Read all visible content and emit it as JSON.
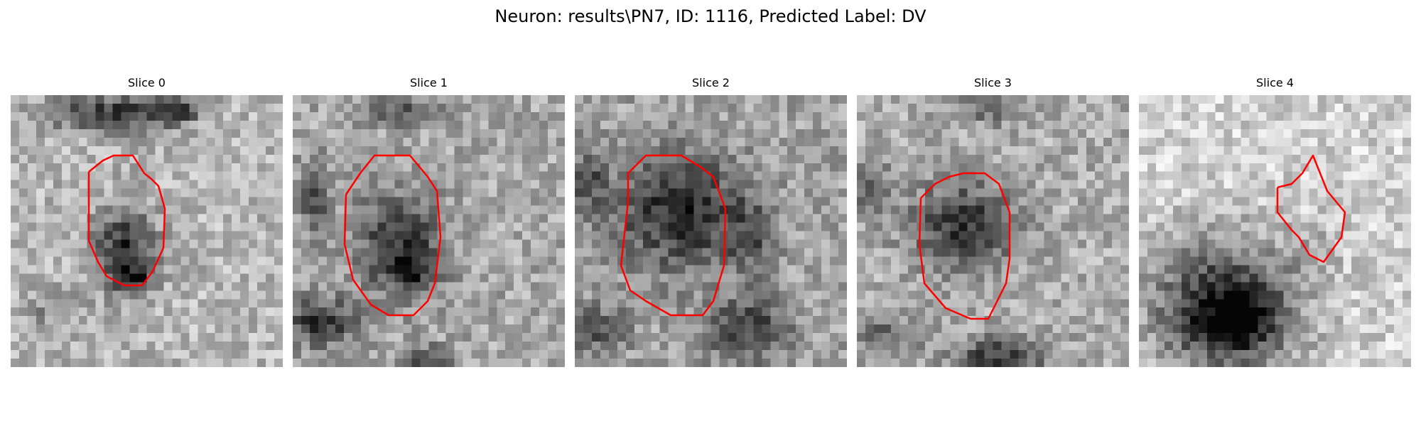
{
  "figure": {
    "title": "Neuron: results\\PN7, ID: 1116, Predicted Label: DV"
  },
  "outline_color": "#ff0000",
  "panels": [
    {
      "title": "Slice 0",
      "image": "grayscale-microscopy-patch"
    },
    {
      "title": "Slice 1",
      "image": "grayscale-microscopy-patch"
    },
    {
      "title": "Slice 2",
      "image": "grayscale-microscopy-patch"
    },
    {
      "title": "Slice 3",
      "image": "grayscale-microscopy-patch"
    },
    {
      "title": "Slice 4",
      "image": "grayscale-microscopy-patch"
    }
  ]
}
